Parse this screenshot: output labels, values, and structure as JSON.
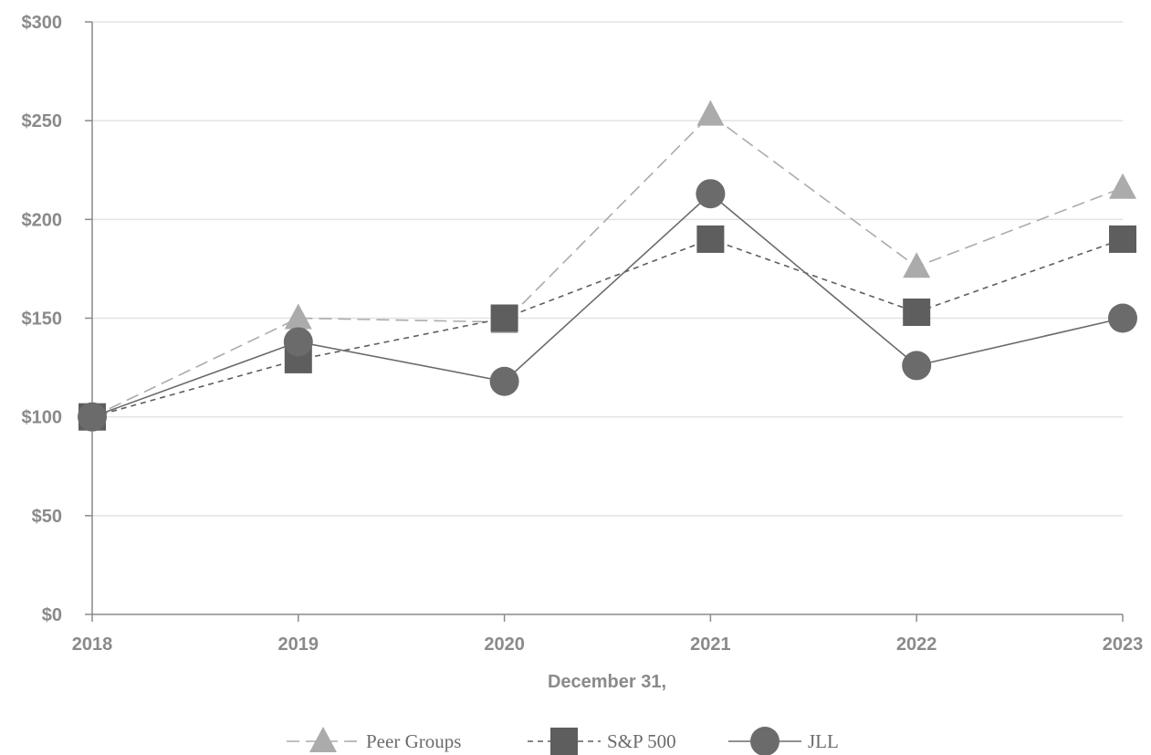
{
  "chart_data": {
    "type": "line",
    "title": "",
    "xlabel": "December 31,",
    "ylabel": "",
    "categories": [
      "2018",
      "2019",
      "2020",
      "2021",
      "2022",
      "2023"
    ],
    "ylim": [
      0,
      300
    ],
    "yticks": [
      0,
      50,
      100,
      150,
      200,
      250,
      300
    ],
    "ytick_labels": [
      "$0",
      "$50",
      "$100",
      "$150",
      "$200",
      "$250",
      "$300"
    ],
    "grid": "horizontal",
    "legend_position": "bottom-center",
    "series": [
      {
        "name": "Peer Groups",
        "values": [
          100,
          150,
          148,
          253,
          176,
          216
        ],
        "color": "#ababab",
        "dash": "long-dash",
        "marker": "triangle"
      },
      {
        "name": "S&P 500",
        "values": [
          100,
          129,
          150,
          190,
          153,
          190
        ],
        "color": "#5e5e5e",
        "dash": "short-dash",
        "marker": "square"
      },
      {
        "name": "JLL",
        "values": [
          100,
          138,
          118,
          213,
          126,
          150
        ],
        "color": "#6b6b6b",
        "dash": "solid",
        "marker": "circle"
      }
    ]
  }
}
